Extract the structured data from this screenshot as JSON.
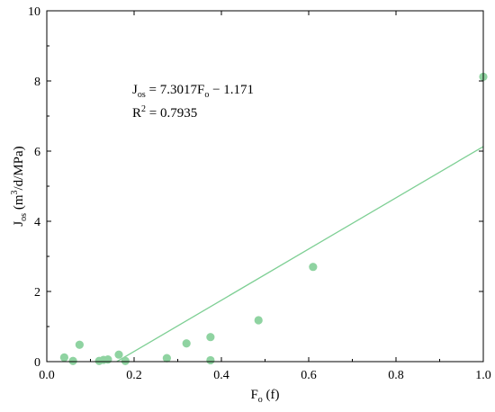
{
  "chart_data": {
    "type": "scatter",
    "xlabel": {
      "base": "F",
      "sub": "o",
      "rest": " (f)"
    },
    "ylabel": {
      "base": "J",
      "sub": "os",
      "pre_sup": " (m",
      "sup": "3",
      "post_sup": "/d/MPa)"
    },
    "xlim": [
      0,
      1.0
    ],
    "ylim": [
      0,
      10
    ],
    "xticks": [
      0.0,
      0.2,
      0.4,
      0.6,
      0.8,
      1.0
    ],
    "xtick_labels": [
      "0.0",
      "0.2",
      "0.4",
      "0.6",
      "0.8",
      "1.0"
    ],
    "yticks": [
      0,
      2,
      4,
      6,
      8,
      10
    ],
    "ytick_labels": [
      "0",
      "2",
      "4",
      "6",
      "8",
      "10"
    ],
    "grid": false,
    "point_color": "#8fd3a1",
    "line_color": "#7ecf94",
    "points": [
      {
        "x": 0.04,
        "y": 0.12
      },
      {
        "x": 0.06,
        "y": 0.02
      },
      {
        "x": 0.075,
        "y": 0.48
      },
      {
        "x": 0.12,
        "y": 0.02
      },
      {
        "x": 0.13,
        "y": 0.05
      },
      {
        "x": 0.14,
        "y": 0.06
      },
      {
        "x": 0.165,
        "y": 0.2
      },
      {
        "x": 0.18,
        "y": 0.02
      },
      {
        "x": 0.275,
        "y": 0.1
      },
      {
        "x": 0.32,
        "y": 0.52
      },
      {
        "x": 0.375,
        "y": 0.7
      },
      {
        "x": 0.375,
        "y": 0.04
      },
      {
        "x": 0.485,
        "y": 1.18
      },
      {
        "x": 0.61,
        "y": 2.7
      },
      {
        "x": 1.0,
        "y": 8.12
      }
    ],
    "fit": {
      "slope": 7.3017,
      "intercept": -1.171,
      "x_range": [
        0.1604,
        1.0
      ]
    },
    "annotation": {
      "line1": {
        "a": "J",
        "a_sub": "os",
        "b": " = 7.3017F",
        "b_sub": "o",
        "c": " − 1.171"
      },
      "line2": {
        "a": "R",
        "a_sup": "2",
        "b": " = 0.7935"
      }
    }
  }
}
